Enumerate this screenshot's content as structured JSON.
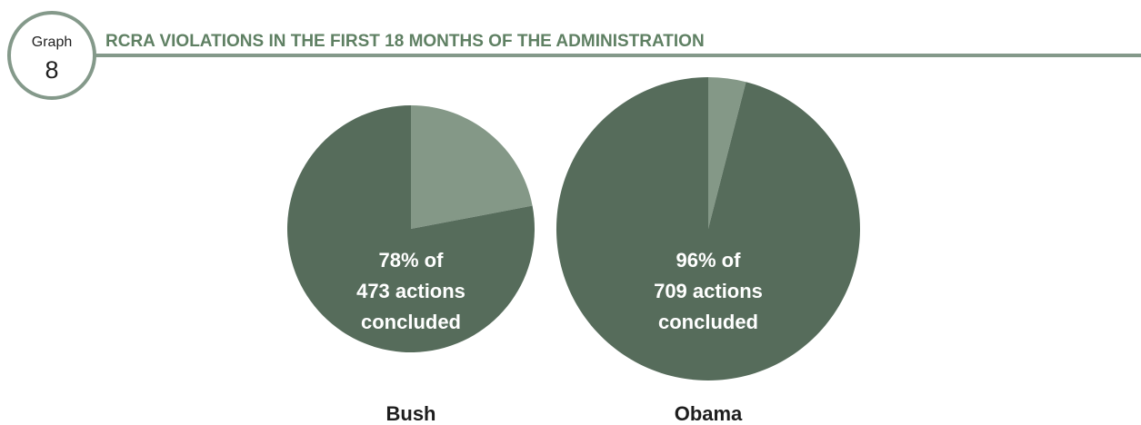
{
  "header": {
    "badge_word": "Graph",
    "badge_number": "8",
    "title": "RCRA VIOLATIONS IN THE FIRST 18 MONTHS OF THE ADMINISTRATION"
  },
  "colors": {
    "accent": "#84998a",
    "concluded": "#566c5b",
    "remaining": "#849887",
    "title": "#5f8063"
  },
  "chart_data": {
    "type": "pie",
    "title": "RCRA VIOLATIONS IN THE FIRST 18 MONTHS OF THE ADMINISTRATION",
    "charts": [
      {
        "category": "Bush",
        "total_actions": 473,
        "concluded_percent": 78,
        "remaining_percent": 22,
        "label_lines": [
          "78% of",
          "473 actions",
          "concluded"
        ]
      },
      {
        "category": "Obama",
        "total_actions": 709,
        "concluded_percent": 96,
        "remaining_percent": 4,
        "label_lines": [
          "96% of",
          "709 actions",
          "concluded"
        ]
      }
    ]
  }
}
